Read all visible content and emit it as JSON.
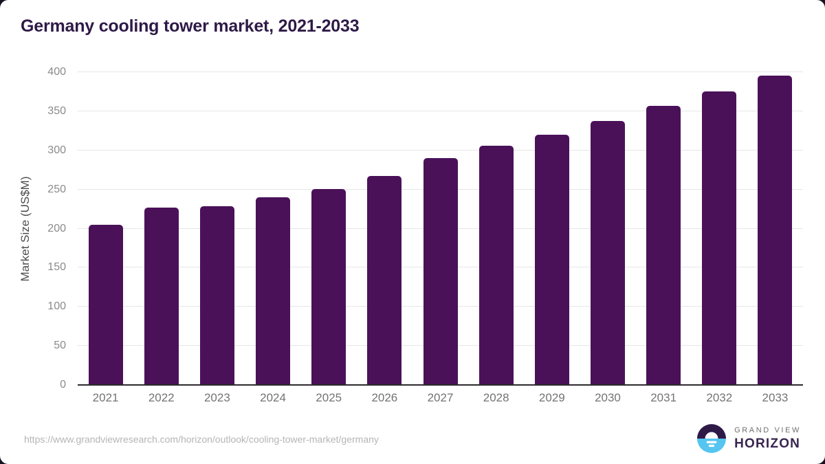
{
  "page": {
    "title": "Germany cooling tower market, 2021-2033",
    "source_url": "https://www.grandviewresearch.com/horizon/outlook/cooling-tower-market/germany"
  },
  "branding": {
    "name_top": "GRAND VIEW",
    "name_bottom": "HORIZON",
    "logo_icon": "sun-over-horizon-icon",
    "logo_top_color": "#2e1a47",
    "logo_bottom_color": "#56c5ef"
  },
  "colors": {
    "bar": "#4a1158",
    "title": "#2e1a47",
    "gridline": "#e6e6e6",
    "axis_line": "#2b2b2b",
    "ytick_label": "#8a8a8a",
    "xtick_label": "#737373",
    "axis_title": "#4d4d4d",
    "source_text": "#b5b5b5",
    "frame_background": "#17101f"
  },
  "chart_data": {
    "type": "bar",
    "title": "Germany cooling tower market, 2021-2033",
    "categories": [
      "2021",
      "2022",
      "2023",
      "2024",
      "2025",
      "2026",
      "2027",
      "2028",
      "2029",
      "2030",
      "2031",
      "2032",
      "2033"
    ],
    "values": [
      205,
      227,
      229,
      240,
      251,
      267,
      290,
      306,
      320,
      338,
      357,
      375,
      396
    ],
    "xlabel": "",
    "ylabel": "Market Size (US$M)",
    "ylim": [
      0,
      400
    ],
    "ytick_step": 50,
    "yticks": [
      0,
      50,
      100,
      150,
      200,
      250,
      300,
      350,
      400
    ],
    "grid": "horizontal",
    "legend": "none",
    "bar_color": "#4a1158"
  }
}
